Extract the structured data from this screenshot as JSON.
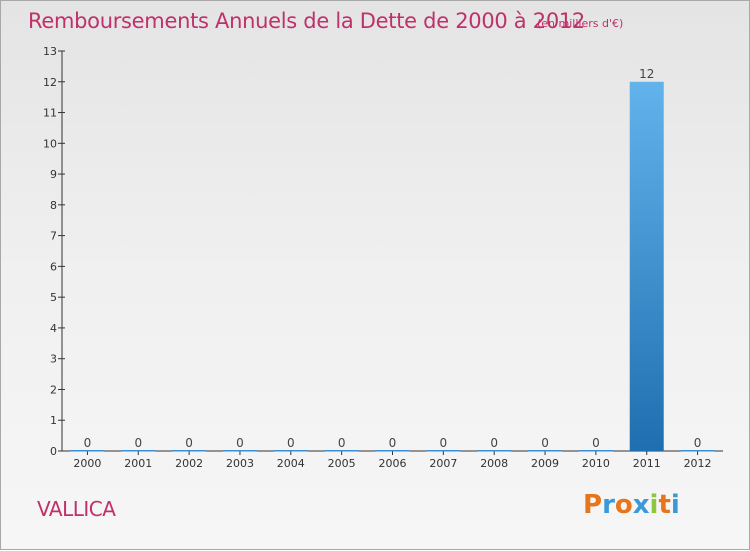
{
  "header": {
    "title": "Remboursements Annuels de la Dette de 2000 à 2012",
    "unit": "(en milliers d'€)"
  },
  "footer": {
    "place": "VALLICA",
    "logo_text": "Proxiti",
    "logo_colors": [
      "#e8751a",
      "#3a9ad9",
      "#e8751a",
      "#3a9ad9",
      "#8dc63f",
      "#e8751a",
      "#3a9ad9"
    ]
  },
  "chart_data": {
    "type": "bar",
    "categories": [
      "2000",
      "2001",
      "2002",
      "2003",
      "2004",
      "2005",
      "2006",
      "2007",
      "2008",
      "2009",
      "2010",
      "2011",
      "2012"
    ],
    "values": [
      0,
      0,
      0,
      0,
      0,
      0,
      0,
      0,
      0,
      0,
      0,
      12,
      0
    ],
    "value_labels": [
      "0",
      "0",
      "0",
      "0",
      "0",
      "0",
      "0",
      "0",
      "0",
      "0",
      "0",
      "12",
      "0"
    ],
    "yticks": [
      "0",
      "1",
      "2",
      "3",
      "4",
      "5",
      "6",
      "7",
      "8",
      "9",
      "10",
      "11",
      "12",
      "13"
    ],
    "title": "Remboursements Annuels de la Dette de 2000 à 2012",
    "xlabel": "",
    "ylabel": "",
    "ylim": [
      0,
      13
    ],
    "grid": false,
    "bar_color": "#3a8fd6",
    "axis_color": "#333333"
  }
}
